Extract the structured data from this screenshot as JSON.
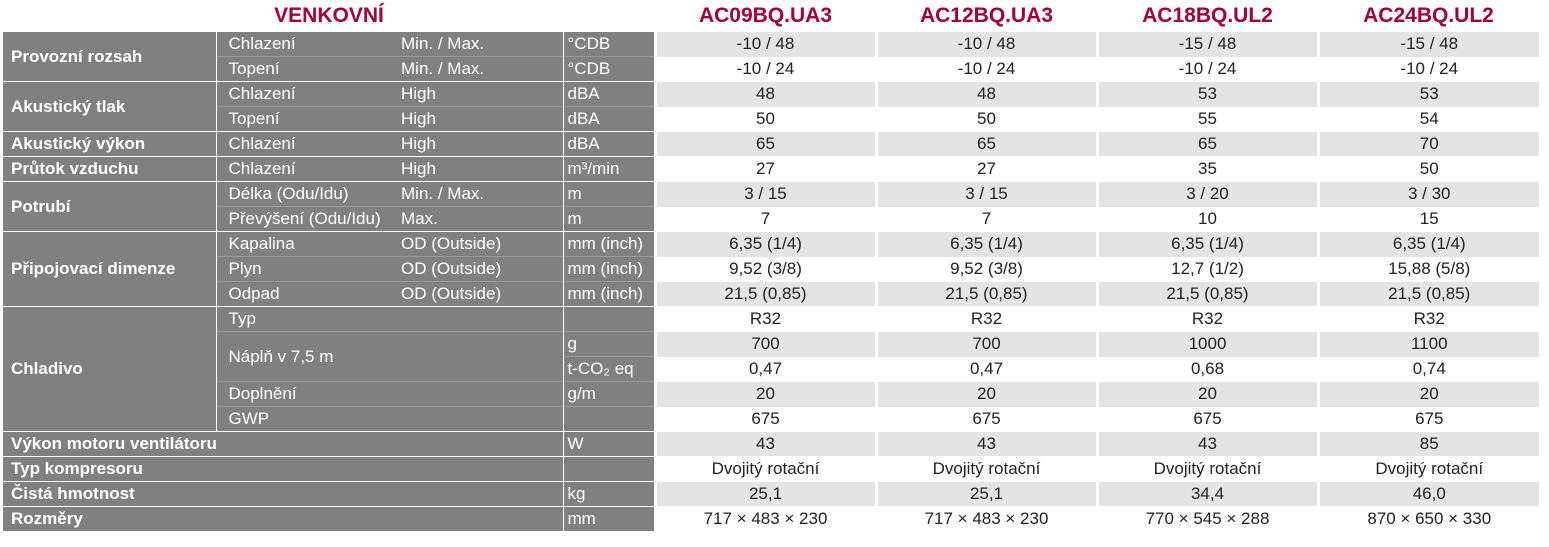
{
  "header": {
    "title": "VENKOVNÍ",
    "models": [
      "AC09BQ.UA3",
      "AC12BQ.UA3",
      "AC18BQ.UL2",
      "AC24BQ.UL2"
    ]
  },
  "table": {
    "groups": [
      {
        "label": "Provozní rozsah",
        "rows": [
          {
            "sub": "Chlazení",
            "condition": "Min. / Max.",
            "unit": "°CDB",
            "values": [
              "-10 / 48",
              "-10 / 48",
              "-15 / 48",
              "-15 / 48"
            ]
          },
          {
            "sub": "Topení",
            "condition": "Min. / Max.",
            "unit": "°CDB",
            "values": [
              "-10 / 24",
              "-10 / 24",
              "-10 / 24",
              "-10 / 24"
            ]
          }
        ]
      },
      {
        "label": "Akustický tlak",
        "rows": [
          {
            "sub": "Chlazení",
            "condition": "High",
            "unit": "dBA",
            "values": [
              "48",
              "48",
              "53",
              "53"
            ]
          },
          {
            "sub": "Topení",
            "condition": "High",
            "unit": "dBA",
            "values": [
              "50",
              "50",
              "55",
              "54"
            ]
          }
        ]
      },
      {
        "label": "Akustický výkon",
        "rows": [
          {
            "sub": "Chlazení",
            "condition": "High",
            "unit": "dBA",
            "values": [
              "65",
              "65",
              "65",
              "70"
            ]
          }
        ]
      },
      {
        "label": "Průtok vzduchu",
        "rows": [
          {
            "sub": "Chlazení",
            "condition": "High",
            "unit": "m³/min",
            "values": [
              "27",
              "27",
              "35",
              "50"
            ]
          }
        ]
      },
      {
        "label": "Potrubí",
        "rows": [
          {
            "sub": "Délka (Odu/Idu)",
            "condition": "Min. / Max.",
            "unit": "m",
            "values": [
              "3 / 15",
              "3 / 15",
              "3 / 20",
              "3 / 30"
            ]
          },
          {
            "sub": "Převýšení (Odu/Idu)",
            "condition": "Max.",
            "unit": "m",
            "values": [
              "7",
              "7",
              "10",
              "15"
            ]
          }
        ]
      },
      {
        "label": "Připojovací dimenze",
        "rows": [
          {
            "sub": "Kapalina",
            "condition": "OD (Outside)",
            "unit": "mm (inch)",
            "values": [
              "6,35 (1/4)",
              "6,35 (1/4)",
              "6,35 (1/4)",
              "6,35 (1/4)"
            ]
          },
          {
            "sub": "Plyn",
            "condition": "OD (Outside)",
            "unit": "mm (inch)",
            "values": [
              "9,52 (3/8)",
              "9,52 (3/8)",
              "12,7 (1/2)",
              "15,88 (5/8)"
            ]
          },
          {
            "sub": "Odpad",
            "condition": "OD (Outside)",
            "unit": "mm (inch)",
            "values": [
              "21,5 (0,85)",
              "21,5 (0,85)",
              "21,5 (0,85)",
              "21,5 (0,85)"
            ]
          }
        ]
      },
      {
        "label": "Chladivo",
        "rows": [
          {
            "sub": "Typ",
            "values": [
              "R32",
              "R32",
              "R32",
              "R32"
            ]
          },
          {
            "sub": "Náplň v 7,5 m",
            "unit": "g",
            "values": [
              "700",
              "700",
              "1000",
              "1100"
            ]
          },
          {
            "unit": "t-CO₂ eq",
            "values": [
              "0,47",
              "0,47",
              "0,68",
              "0,74"
            ]
          },
          {
            "sub": "Doplnění",
            "unit": "g/m",
            "values": [
              "20",
              "20",
              "20",
              "20"
            ]
          },
          {
            "sub": "GWP",
            "values": [
              "675",
              "675",
              "675",
              "675"
            ]
          }
        ]
      },
      {
        "label": "Výkon motoru ventilátoru",
        "rows": [
          {
            "unit": "W",
            "values": [
              "43",
              "43",
              "43",
              "85"
            ]
          }
        ]
      },
      {
        "label": "Typ kompresoru",
        "rows": [
          {
            "values": [
              "Dvojitý rotační",
              "Dvojitý rotační",
              "Dvojitý rotační",
              "Dvojitý rotační"
            ]
          }
        ]
      },
      {
        "label": "Čistá hmotnost",
        "rows": [
          {
            "unit": "kg",
            "values": [
              "25,1",
              "25,1",
              "34,4",
              "46,0"
            ]
          }
        ]
      },
      {
        "label": "Rozměry",
        "rows": [
          {
            "unit": "mm",
            "values": [
              "717 × 483 × 230",
              "717 × 483 × 230",
              "770 × 545 × 288",
              "870 × 650 × 330"
            ]
          }
        ]
      }
    ]
  }
}
